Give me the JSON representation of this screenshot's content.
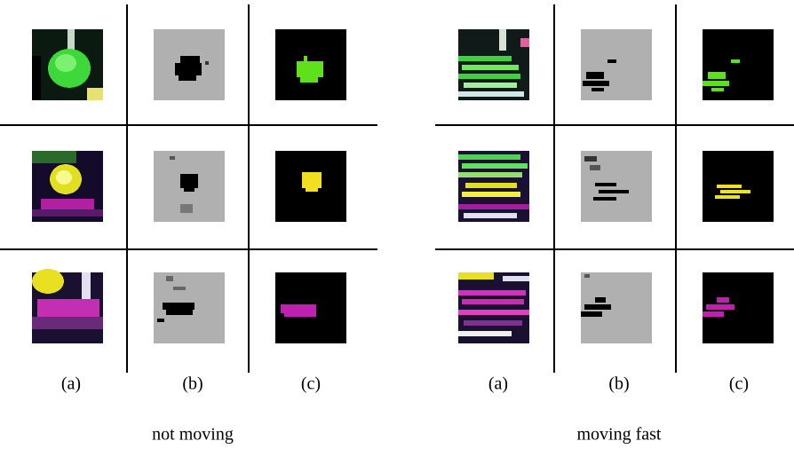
{
  "panels": [
    {
      "columns": [
        "(a)",
        "(b)",
        "(c)"
      ],
      "caption": "not moving"
    },
    {
      "columns": [
        "(a)",
        "(b)",
        "(c)"
      ],
      "caption": "moving fast"
    }
  ]
}
